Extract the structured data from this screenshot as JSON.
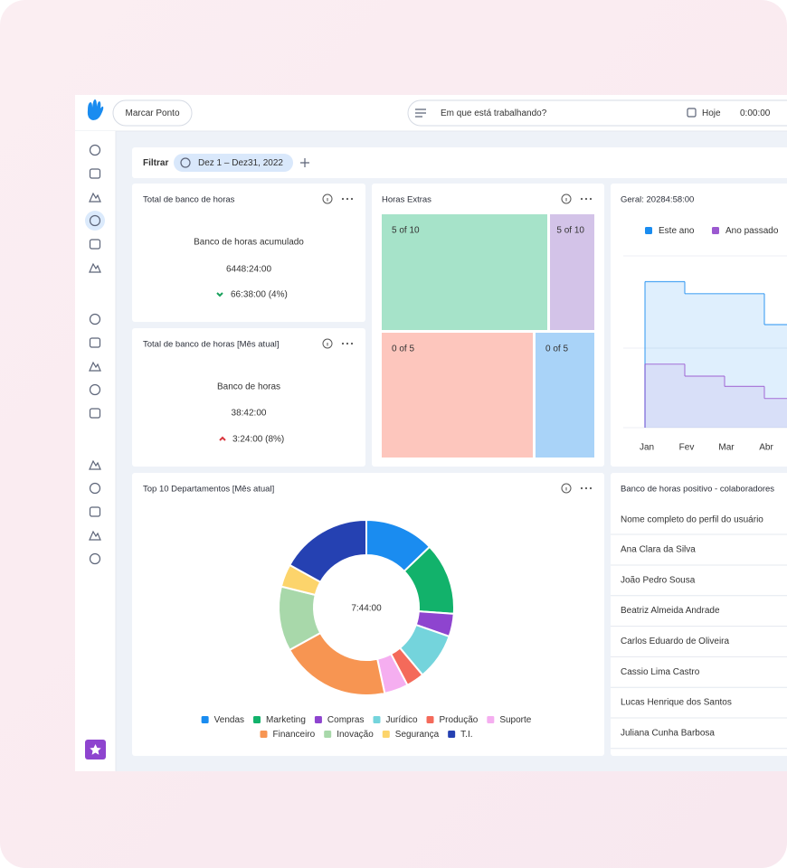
{
  "topbar": {
    "button": "Marcar Ponto",
    "search": "Em que está trabalhando?",
    "today": "Hoje",
    "timer": "0:00:00"
  },
  "filter": {
    "label": "Filtrar",
    "range": "Dez 1 – Dez31, 2022"
  },
  "bank_total": {
    "title": "Total de banco de horas",
    "caption": "Banco de horas acumulado",
    "value": "6448:24:00",
    "change": "66:38:00 (4%)"
  },
  "bank_month": {
    "title": "Total de banco de horas [Mês atual]",
    "caption": "Banco de horas",
    "value": "38:42:00",
    "change": "3:24:00 (8%)"
  },
  "overtime": {
    "title": "Horas Extras",
    "cells": [
      {
        "label": "5 of 10",
        "color": "#a6e3c9"
      },
      {
        "label": "5 of 10",
        "color": "#d3c3e8"
      },
      {
        "label": "0 of 5",
        "color": "#fdc6bd"
      },
      {
        "label": "0 of 5",
        "color": "#a9d3f8"
      }
    ]
  },
  "chart_data": [
    {
      "type": "step",
      "title": "Geral: 20284:58:00",
      "categories": [
        "Jan",
        "Fev",
        "Mar",
        "Abr"
      ],
      "ylim": [
        0,
        100
      ],
      "series": [
        {
          "name": "Este ano",
          "color": "#1a8cf0",
          "values": [
            85,
            78,
            78,
            60
          ]
        },
        {
          "name": "Ano passado",
          "color": "#9b59d0",
          "values": [
            37,
            30,
            24,
            17
          ]
        }
      ]
    },
    {
      "type": "pie",
      "title": "Top 10 Departamentos [Mês atual]",
      "center_label": "7:44:00",
      "categories": [
        "Vendas",
        "Marketing",
        "Compras",
        "Jurídico",
        "Produção",
        "Suporte",
        "Financeiro",
        "Inovação",
        "Segurança",
        "T.I."
      ],
      "values": [
        12.8,
        13.3,
        4.2,
        8.6,
        3.3,
        4.4,
        20.3,
        11.9,
        4.2,
        16.9
      ],
      "colors": [
        "#1a8cf0",
        "#12b26b",
        "#8e44cf",
        "#74d4dc",
        "#f46a5a",
        "#f5aef0",
        "#f79552",
        "#a8d8aa",
        "#fcd46b",
        "#2541b2"
      ]
    }
  ],
  "employees": {
    "title": "Banco de horas positivo - colaboradores",
    "header": "Nome completo do perfil do usuário",
    "rows": [
      "Ana Clara da Silva",
      "João Pedro Sousa",
      "Beatriz Almeida Andrade",
      "Carlos Eduardo de Oliveira",
      "Cassio Lima Castro",
      "Lucas Henrique dos Santos",
      "Juliana Cunha Barbosa"
    ]
  }
}
